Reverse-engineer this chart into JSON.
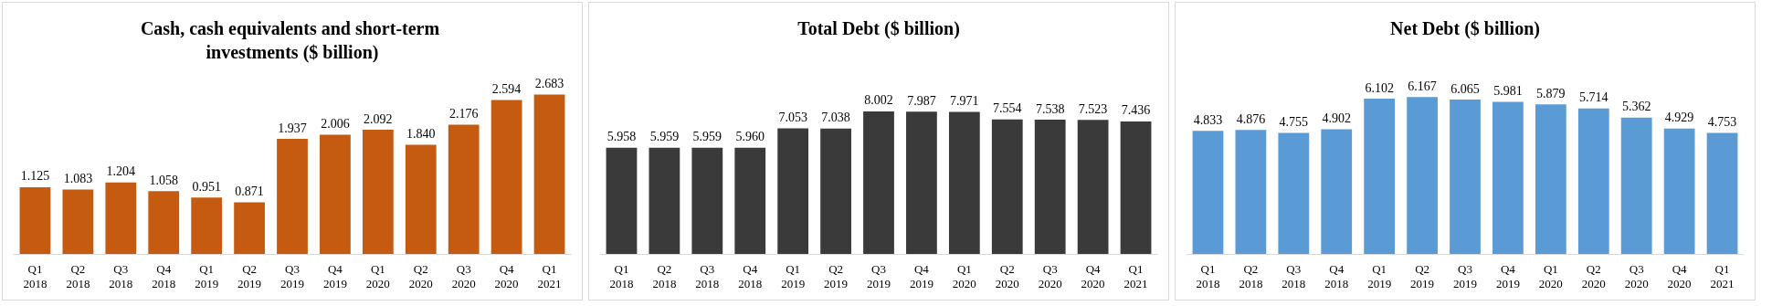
{
  "chart_data": [
    {
      "type": "bar",
      "title": "Cash, cash equivalents and short-term investments ($ billion)",
      "categories": [
        "Q1\n2018",
        "Q2\n2018",
        "Q3\n2018",
        "Q4\n2018",
        "Q1\n2019",
        "Q2\n2019",
        "Q3\n2019",
        "Q4\n2019",
        "Q1\n2020",
        "Q2\n2020",
        "Q3\n2020",
        "Q4\n2020",
        "Q1\n2021"
      ],
      "series": [
        {
          "color": "#c55a11",
          "values": [
            1.125,
            1.083,
            1.204,
            1.058,
            0.951,
            0.871,
            1.937,
            2.006,
            2.092,
            1.84,
            2.176,
            2.594,
            2.683
          ],
          "value_labels": [
            "1.125",
            "1.083",
            "1.204",
            "1.058",
            "0.951",
            "0.871",
            "1.937",
            "2.006",
            "2.092",
            "1.840",
            "2.176",
            "2.594",
            "2.683"
          ]
        }
      ],
      "grid": false,
      "tick_labels": "x"
    },
    {
      "type": "bar",
      "title": "Total Debt ($ billion)",
      "categories": [
        "Q1\n2018",
        "Q2\n2018",
        "Q3\n2018",
        "Q4\n2018",
        "Q1\n2019",
        "Q2\n2019",
        "Q3\n2019",
        "Q4\n2019",
        "Q1\n2020",
        "Q2\n2020",
        "Q3\n2020",
        "Q4\n2020",
        "Q1\n2021"
      ],
      "series": [
        {
          "color": "#3a3a3a",
          "values": [
            5.958,
            5.959,
            5.959,
            5.96,
            7.053,
            7.038,
            8.002,
            7.987,
            7.971,
            7.554,
            7.538,
            7.523,
            7.436
          ],
          "value_labels": [
            "5.958",
            "5.959",
            "5.959",
            "5.960",
            "7.053",
            "7.038",
            "8.002",
            "7.987",
            "7.971",
            "7.554",
            "7.538",
            "7.523",
            "7.436"
          ]
        }
      ],
      "grid": false,
      "tick_labels": "x"
    },
    {
      "type": "bar",
      "title": "Net Debt ($ billion)",
      "categories": [
        "Q1\n2018",
        "Q2\n2018",
        "Q3\n2018",
        "Q4\n2018",
        "Q1\n2019",
        "Q2\n2019",
        "Q3\n2019",
        "Q4\n2019",
        "Q1\n2020",
        "Q2\n2020",
        "Q3\n2020",
        "Q4\n2020",
        "Q1\n2021"
      ],
      "series": [
        {
          "color": "#5b9bd5",
          "values": [
            4.833,
            4.876,
            4.755,
            4.902,
            6.102,
            6.167,
            6.065,
            5.981,
            5.879,
            5.714,
            5.362,
            4.929,
            4.753
          ],
          "value_labels": [
            "4.833",
            "4.876",
            "4.755",
            "4.902",
            "6.102",
            "6.167",
            "6.065",
            "5.981",
            "5.879",
            "5.714",
            "5.362",
            "4.929",
            "4.753"
          ]
        }
      ],
      "grid": false,
      "tick_labels": "x"
    }
  ]
}
